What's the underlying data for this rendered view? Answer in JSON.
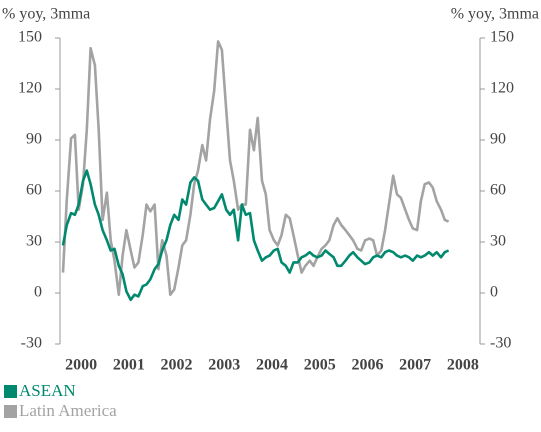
{
  "chart_data": {
    "type": "line",
    "y_label": "% yoy, 3mma",
    "y2_label": "% yoy, 3mma",
    "x": [
      1999.62,
      1999.7,
      1999.79,
      1999.87,
      1999.95,
      2000.04,
      2000.12,
      2000.2,
      2000.29,
      2000.37,
      2000.45,
      2000.54,
      2000.62,
      2000.7,
      2000.79,
      2000.87,
      2000.95,
      2001.04,
      2001.12,
      2001.2,
      2001.29,
      2001.37,
      2001.45,
      2001.54,
      2001.62,
      2001.7,
      2001.79,
      2001.87,
      2001.95,
      2002.04,
      2002.12,
      2002.2,
      2002.29,
      2002.37,
      2002.45,
      2002.54,
      2002.62,
      2002.7,
      2002.79,
      2002.87,
      2002.95,
      2003.04,
      2003.12,
      2003.2,
      2003.29,
      2003.37,
      2003.45,
      2003.54,
      2003.62,
      2003.7,
      2003.79,
      2003.87,
      2003.95,
      2004.04,
      2004.12,
      2004.2,
      2004.29,
      2004.37,
      2004.45,
      2004.54,
      2004.62,
      2004.7,
      2004.79,
      2004.87,
      2004.95,
      2005.04,
      2005.12,
      2005.2,
      2005.29,
      2005.37,
      2005.45,
      2005.54,
      2005.62,
      2005.7,
      2005.79,
      2005.87,
      2005.95,
      2006.04,
      2006.12,
      2006.2,
      2006.29,
      2006.37,
      2006.45,
      2006.54,
      2006.62,
      2006.7,
      2006.79,
      2006.87,
      2006.95,
      2007.04,
      2007.12,
      2007.2,
      2007.29,
      2007.37,
      2007.45,
      2007.54,
      2007.62,
      2007.7
    ],
    "series": [
      {
        "name": "ASEAN",
        "color": "#00896f",
        "values": [
          28,
          40,
          47,
          46,
          52,
          66,
          72,
          64,
          52,
          46,
          37,
          31,
          25,
          26,
          16,
          11,
          1,
          -4,
          -1,
          -2,
          4,
          5,
          8,
          14,
          17,
          25,
          31,
          40,
          46,
          43,
          55,
          52,
          65,
          68,
          66,
          55,
          52,
          49,
          50,
          54,
          58,
          49,
          46,
          49,
          31,
          52,
          46,
          47,
          31,
          25,
          19,
          21,
          22,
          25,
          26,
          18,
          16,
          12,
          18,
          18,
          21,
          22,
          24,
          22,
          21,
          22,
          25,
          23,
          21,
          16,
          16,
          19,
          22,
          24,
          21,
          19,
          17,
          18,
          21,
          22,
          21,
          24,
          25,
          24,
          22,
          21,
          22,
          21,
          19,
          22,
          21,
          22,
          24,
          22,
          24,
          21,
          24,
          25
        ]
      },
      {
        "name": "Latin America",
        "color": "#a3a3a3",
        "values": [
          12,
          55,
          91,
          93,
          49,
          64,
          96,
          144,
          134,
          96,
          43,
          59,
          31,
          19,
          -1,
          22,
          37,
          25,
          15,
          18,
          34,
          52,
          48,
          52,
          14,
          31,
          22,
          -1,
          2,
          15,
          28,
          31,
          46,
          64,
          72,
          87,
          78,
          102,
          119,
          148,
          143,
          108,
          78,
          66,
          49,
          52,
          52,
          96,
          84,
          103,
          66,
          58,
          37,
          31,
          28,
          34,
          46,
          44,
          34,
          22,
          12,
          16,
          19,
          16,
          21,
          26,
          28,
          31,
          40,
          44,
          40,
          37,
          34,
          31,
          26,
          25,
          31,
          32,
          31,
          22,
          25,
          37,
          52,
          69,
          58,
          56,
          49,
          43,
          38,
          37,
          54,
          64,
          65,
          62,
          54,
          49,
          43,
          42
        ]
      }
    ],
    "xlim": [
      1999.6,
      2008.4
    ],
    "xticks": [
      2000,
      2001,
      2002,
      2003,
      2004,
      2005,
      2006,
      2007,
      2008
    ],
    "ylim": [
      -30,
      150
    ],
    "yticks": [
      150,
      120,
      90,
      60,
      30,
      0,
      -30
    ],
    "y2lim": [
      -30,
      150
    ],
    "y2ticks": [
      150,
      120,
      90,
      60,
      30,
      0,
      -30
    ]
  }
}
